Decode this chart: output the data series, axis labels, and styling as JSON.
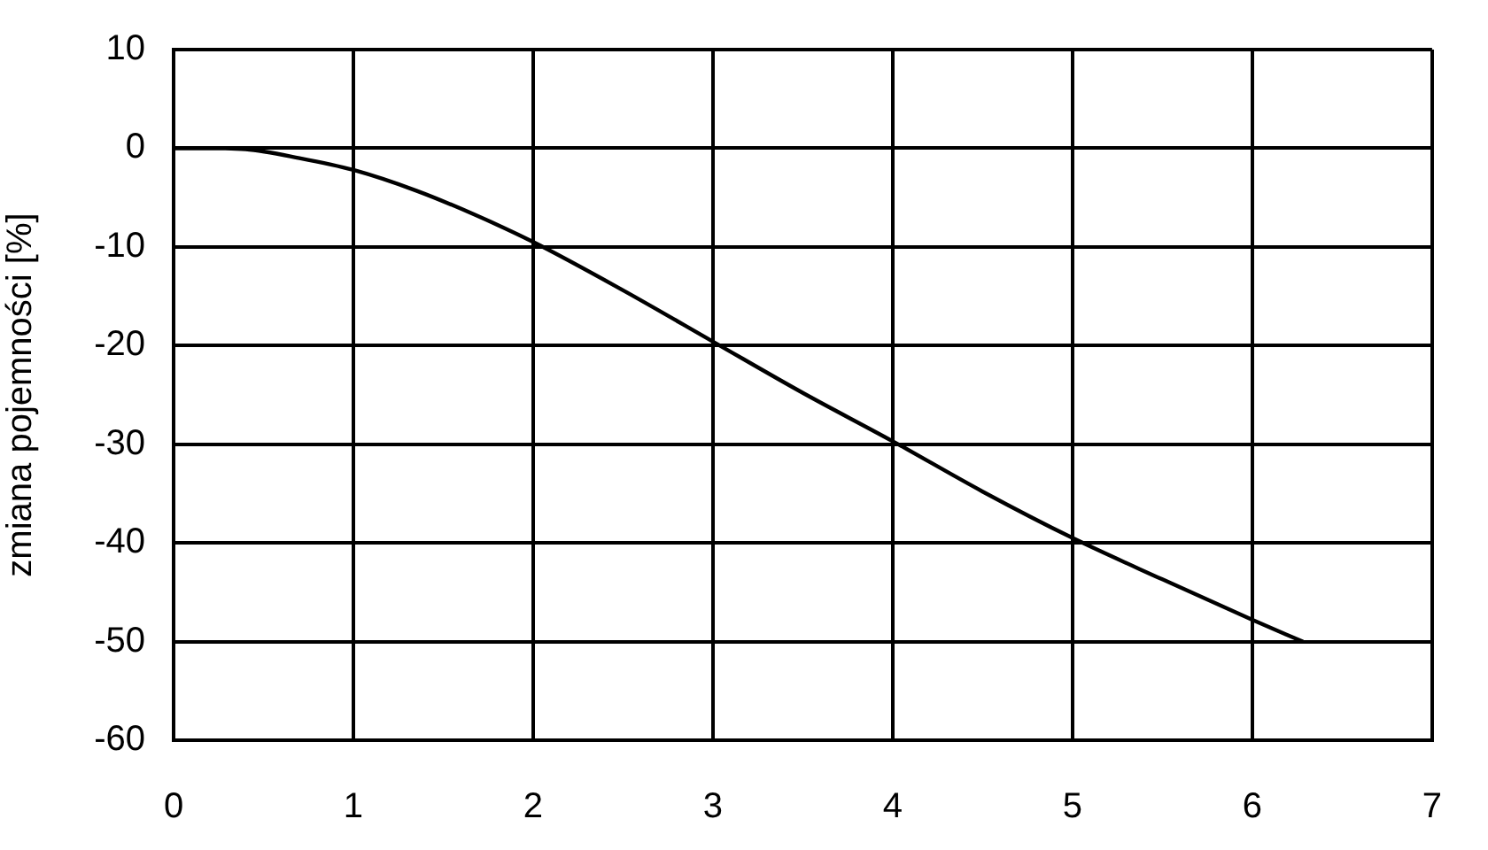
{
  "chart_data": {
    "type": "line",
    "ylabel": "zmiana pojemności [%]",
    "x": [
      0,
      0.2,
      0.4,
      0.7,
      1,
      1.35,
      1.67,
      2,
      2.5,
      3,
      3.5,
      4,
      4.5,
      5,
      5.5,
      6,
      6.28
    ],
    "values": [
      0,
      0,
      -0.1,
      -1,
      -2.2,
      -4.3,
      -6.7,
      -9.5,
      -14.4,
      -19.6,
      -24.8,
      -29.7,
      -34.8,
      -39.5,
      -43.7,
      -47.8,
      -50
    ],
    "color": "#000000",
    "marker": "none",
    "line_style": "solid",
    "grid": true,
    "xlim": [
      0,
      7
    ],
    "xticks": [
      0,
      1,
      2,
      3,
      4,
      5,
      6,
      7
    ],
    "ylim": [
      -60,
      10
    ],
    "yticks": [
      -60,
      -50,
      -40,
      -30,
      -20,
      -10,
      0,
      10
    ]
  }
}
